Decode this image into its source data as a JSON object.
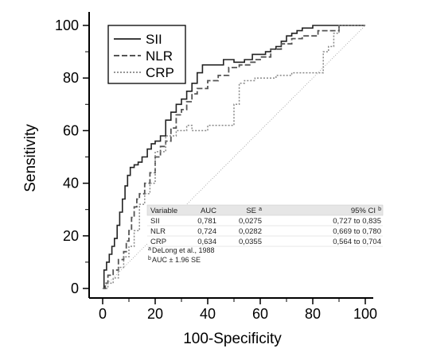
{
  "chart_data": {
    "type": "line",
    "xlabel": "100-Specificity",
    "ylabel": "Sensitivity",
    "xlim": [
      0,
      100
    ],
    "ylim": [
      0,
      100
    ],
    "xticks": [
      "0",
      "20",
      "40",
      "60",
      "80",
      "100"
    ],
    "yticks": [
      "0",
      "20",
      "40",
      "60",
      "80",
      "100"
    ],
    "legend_position": "top-left",
    "reference_line": {
      "x": [
        0,
        100
      ],
      "y": [
        0,
        100
      ]
    },
    "series": [
      {
        "name": "SII",
        "style": "solid",
        "color": "#222222",
        "x": [
          0,
          0.5,
          0.5,
          1.5,
          1.5,
          2.5,
          2.5,
          3.5,
          3.5,
          4.5,
          4.5,
          5.5,
          5.5,
          6.5,
          6.5,
          7.5,
          7.5,
          8.5,
          8.5,
          9.5,
          9.5,
          10.5,
          10.5,
          12,
          12,
          13.5,
          13.5,
          15,
          15,
          17,
          17,
          18.5,
          18.5,
          20,
          20,
          22,
          22,
          24,
          24,
          26,
          26,
          28,
          28,
          30,
          30,
          32,
          32,
          34,
          34,
          36,
          36,
          38,
          38,
          46,
          46,
          50,
          50,
          54,
          54,
          57,
          57,
          62,
          62,
          64,
          64,
          66,
          66,
          68,
          68,
          70,
          70,
          72,
          72,
          74,
          74,
          76,
          76,
          80,
          80,
          100
        ],
        "y": [
          0,
          0,
          7,
          7,
          10,
          10,
          13,
          13,
          16,
          16,
          19,
          19,
          24,
          24,
          29,
          29,
          34,
          34,
          39,
          39,
          43,
          43,
          46,
          46,
          47,
          47,
          48,
          48,
          50,
          50,
          53,
          53,
          55,
          55,
          56,
          56,
          58,
          58,
          64,
          64,
          67,
          67,
          70,
          70,
          72,
          72,
          75,
          75,
          78,
          78,
          82,
          82,
          85,
          85,
          87,
          87,
          86,
          86,
          87,
          87,
          89,
          89,
          90,
          90,
          91,
          91,
          92,
          92,
          94,
          94,
          96,
          96,
          97,
          97,
          98,
          98,
          99,
          99,
          100,
          100
        ]
      },
      {
        "name": "NLR",
        "style": "dashed",
        "color": "#555555",
        "x": [
          0,
          1,
          1,
          2,
          2,
          4,
          4,
          6,
          6,
          8,
          8,
          9,
          9,
          10,
          10,
          11,
          11,
          12,
          12,
          13,
          13,
          14,
          14,
          16,
          16,
          18,
          18,
          20,
          20,
          22,
          22,
          24,
          24,
          26,
          26,
          28,
          28,
          30,
          30,
          32,
          32,
          34,
          34,
          36,
          36,
          40,
          40,
          44,
          44,
          48,
          48,
          52,
          52,
          56,
          56,
          58,
          58,
          60,
          60,
          64,
          64,
          68,
          68,
          72,
          72,
          76,
          76,
          82,
          82,
          90,
          90,
          100
        ],
        "y": [
          0,
          0,
          2,
          2,
          5,
          5,
          7,
          7,
          11,
          11,
          14,
          14,
          18,
          18,
          22,
          22,
          27,
          27,
          31,
          31,
          34,
          34,
          36,
          36,
          40,
          40,
          44,
          44,
          50,
          50,
          54,
          54,
          56,
          56,
          61,
          61,
          66,
          66,
          68,
          68,
          71,
          71,
          74,
          74,
          76,
          76,
          79,
          79,
          81,
          81,
          84,
          84,
          85,
          85,
          86,
          86,
          87,
          87,
          88,
          88,
          91,
          91,
          93,
          93,
          95,
          95,
          96,
          96,
          98,
          98,
          100,
          100
        ]
      },
      {
        "name": "CRP",
        "style": "dotted",
        "color": "#888888",
        "x": [
          0,
          2,
          2,
          4,
          4,
          6,
          6,
          8,
          8,
          10,
          10,
          12,
          12,
          14,
          14,
          16,
          16,
          18,
          18,
          20,
          20,
          24,
          24,
          28,
          28,
          32,
          32,
          34,
          34,
          40,
          40,
          50,
          50,
          52,
          52,
          54,
          54,
          58,
          58,
          62,
          62,
          66,
          66,
          72,
          72,
          84,
          84,
          86,
          86,
          88,
          88,
          90,
          90,
          100
        ],
        "y": [
          0,
          0,
          2,
          2,
          4,
          4,
          8,
          8,
          12,
          12,
          16,
          16,
          22,
          22,
          32,
          32,
          36,
          36,
          40,
          40,
          52,
          52,
          58,
          58,
          60,
          60,
          62,
          62,
          60,
          60,
          62,
          62,
          70,
          70,
          78,
          78,
          79,
          79,
          80,
          80,
          80,
          80,
          81,
          81,
          82,
          82,
          90,
          90,
          92,
          92,
          97,
          97,
          100,
          100
        ]
      }
    ],
    "table": {
      "headers": [
        "Variable",
        "AUC",
        "SE",
        "95% CI"
      ],
      "header_sups": {
        "SE": "a",
        "95% CI": "b"
      },
      "rows": [
        [
          "SII",
          "0,781",
          "0,0275",
          "0,727 to 0,835"
        ],
        [
          "NLR",
          "0,724",
          "0,0282",
          "0,669 to 0,780"
        ],
        [
          "CRP",
          "0,634",
          "0,0355",
          "0,564 to 0,704"
        ]
      ],
      "footnotes": [
        {
          "mark": "a",
          "text": "DeLong et al., 1988"
        },
        {
          "mark": "b",
          "text": "AUC ± 1.96 SE"
        }
      ]
    }
  }
}
